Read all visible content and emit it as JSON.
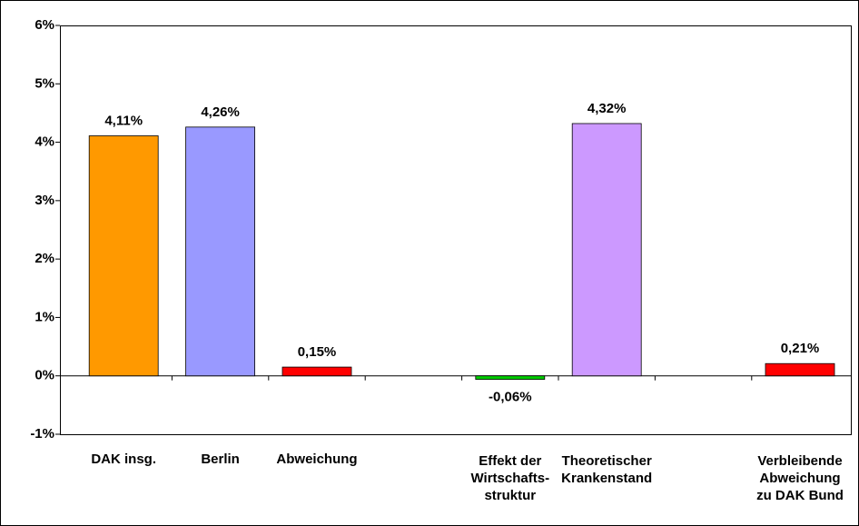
{
  "chart_data": {
    "type": "bar",
    "categories": [
      "DAK insg.",
      "Berlin",
      "Abweichung",
      null,
      "Effekt der\nWirtschafts-\nstruktur",
      "Theoretischer\nKrankenstand",
      null,
      "Verbleibende\nAbweichung\nzu DAK Bund"
    ],
    "values": [
      4.11,
      4.26,
      0.15,
      null,
      -0.06,
      4.32,
      null,
      0.21
    ],
    "value_labels": [
      "4,11%",
      "4,26%",
      "0,15%",
      null,
      "-0,06%",
      "4,32%",
      null,
      "0,21%"
    ],
    "colors": [
      "#ff9900",
      "#9999ff",
      "#ff0000",
      null,
      "#00cc00",
      "#cc99ff",
      null,
      "#ff0000"
    ],
    "ylim": [
      -1,
      6
    ],
    "yticks": [
      {
        "value": -1,
        "label": "-1%"
      },
      {
        "value": 0,
        "label": "0%"
      },
      {
        "value": 1,
        "label": "1%"
      },
      {
        "value": 2,
        "label": "2%"
      },
      {
        "value": 3,
        "label": "3%"
      },
      {
        "value": 4,
        "label": "4%"
      },
      {
        "value": 5,
        "label": "5%"
      },
      {
        "value": 6,
        "label": "6%"
      }
    ]
  }
}
